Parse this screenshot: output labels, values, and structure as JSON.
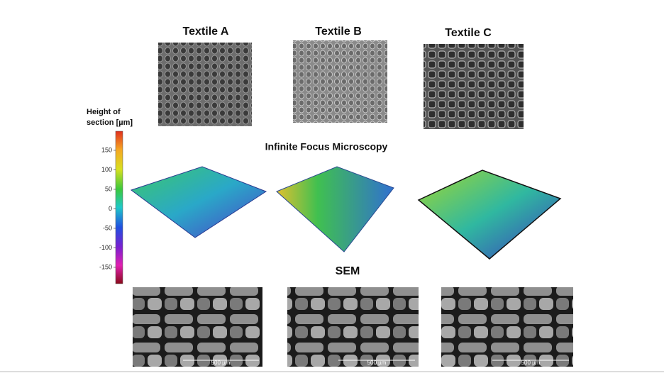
{
  "panels": [
    {
      "title": "Textile A",
      "scale_bar": "500 µm"
    },
    {
      "title": "Textile B",
      "scale_bar": "500 µm"
    },
    {
      "title": "Textile C",
      "scale_bar": "500 µm"
    }
  ],
  "section_titles": {
    "microscopy": "Infinite Focus Microscopy",
    "sem": "SEM"
  },
  "colorbar": {
    "title_lines": [
      "Height of",
      "section [µm]"
    ],
    "lim": [
      -192,
      199
    ],
    "ticks": [
      150,
      100,
      50,
      0,
      -50,
      -100,
      -150
    ]
  }
}
